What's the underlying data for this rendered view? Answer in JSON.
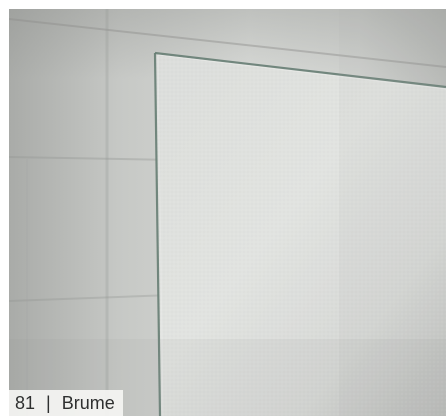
{
  "photo": {
    "subject": "glass-panel"
  },
  "caption": {
    "number": "81",
    "separator": "|",
    "name": "Brume"
  }
}
